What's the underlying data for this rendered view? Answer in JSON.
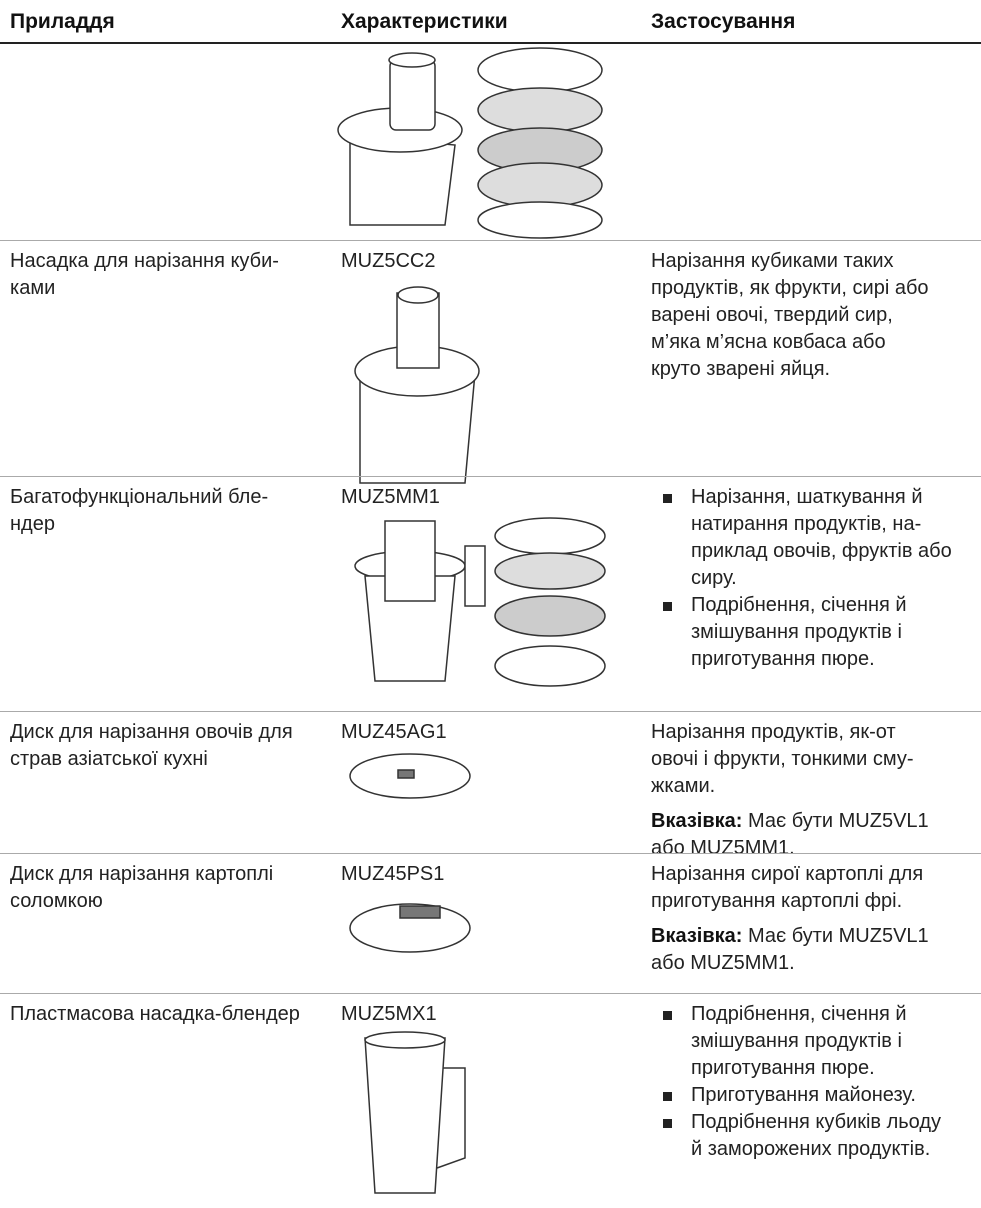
{
  "table": {
    "header": [
      "Приладдя",
      "Характеристики",
      "Застосування"
    ],
    "rows": [
      {
        "accessory": [
          "Насадка для нарізання куби-",
          "ками"
        ],
        "model": "MUZ5CC2",
        "usage": {
          "paragraph": [
            "Нарізання кубиками таких",
            "продуктів, як фрукти, сирі або",
            "варені овочі, твердий сир,",
            "м’яка м’ясна ковбаса або",
            "круто зварені яйця."
          ]
        }
      },
      {
        "accessory": [
          "Багатофункціональний бле-",
          "ндер"
        ],
        "model": "MUZ5MM1",
        "usage": {
          "bullets": [
            [
              "Нарізання, шаткування й",
              "натирання продуктів, на-",
              "приклад овочів, фруктів або",
              "сиру."
            ],
            [
              "Подрібнення, січення й",
              "змішування продуктів і",
              "приготування пюре."
            ]
          ]
        }
      },
      {
        "accessory": [
          "Диск для нарізання овочів для",
          "страв азіатської кухні"
        ],
        "model": "MUZ45AG1",
        "usage": {
          "paragraph": [
            "Нарізання продуктів, як-от",
            "овочі і фрукти, тонкими сму-",
            "жками."
          ],
          "note": {
            "label": "Вказівка:",
            "lines": [
              "Має бути MUZ5VL1",
              "або MUZ5MM1."
            ]
          }
        }
      },
      {
        "accessory": [
          "Диск для нарізання картоплі",
          "соломкою"
        ],
        "model": "MUZ45PS1",
        "usage": {
          "paragraph": [
            "Нарізання сирої картоплі для",
            "приготування картоплі фрі."
          ],
          "note": {
            "label": "Вказівка:",
            "lines": [
              "Має бути MUZ5VL1",
              "або MUZ5MM1."
            ]
          }
        }
      },
      {
        "accessory": [
          "Пластмасова насадка-блендер"
        ],
        "model": "MUZ5MX1",
        "usage": {
          "bullets": [
            [
              "Подрібнення, січення й",
              "змішування продуктів і",
              "приготування пюре."
            ],
            [
              "Приготування майонезу."
            ],
            [
              "Подрібнення кубиків льоду",
              "й заморожених продуктів."
            ]
          ]
        }
      }
    ]
  }
}
